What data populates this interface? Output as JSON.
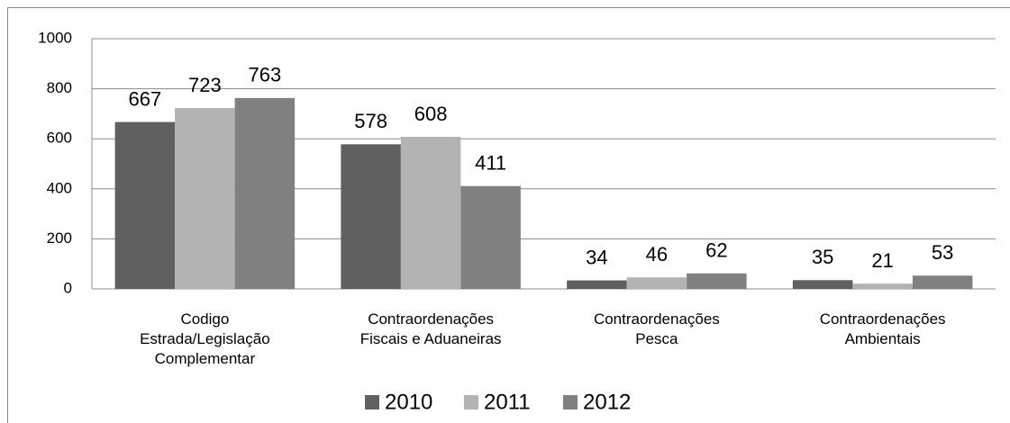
{
  "chart_data": {
    "type": "bar",
    "categories": [
      "Codigo Estrada/Legislação Complementar",
      "Contraordenações Fiscais e Aduaneiras",
      "Contraordenações Pesca",
      "Contraordenações Ambientais"
    ],
    "series": [
      {
        "name": "2010",
        "color": "#606060",
        "values": [
          667,
          578,
          34,
          35
        ]
      },
      {
        "name": "2011",
        "color": "#b3b3b3",
        "values": [
          723,
          608,
          46,
          21
        ]
      },
      {
        "name": "2012",
        "color": "#808080",
        "values": [
          763,
          411,
          62,
          53
        ]
      }
    ],
    "ylim": [
      0,
      1000
    ],
    "yticks": [
      0,
      200,
      400,
      600,
      800,
      1000
    ],
    "grid": true,
    "legend": "bottom"
  }
}
